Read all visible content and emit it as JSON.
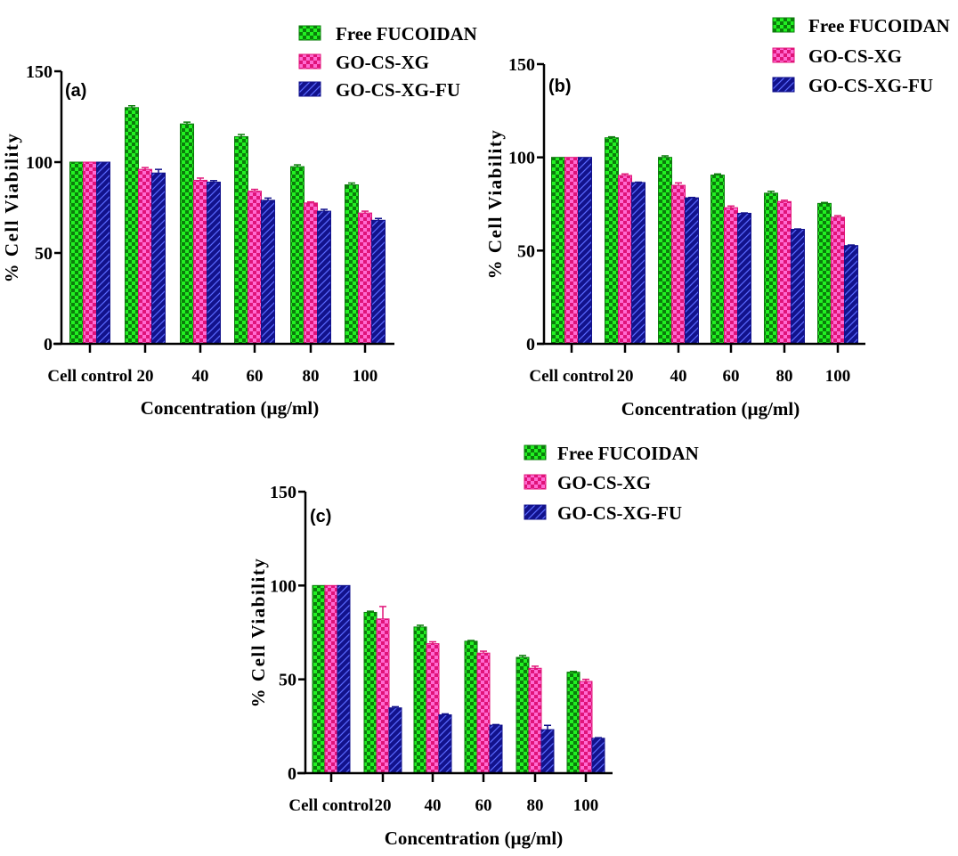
{
  "chart_data": [
    {
      "type": "bar",
      "panel_label": "(a)",
      "categories": [
        "Cell control",
        "20",
        "40",
        "60",
        "80",
        "100"
      ],
      "xlabel": "Concentration (µg/ml)",
      "ylabel": "% Cell Viability",
      "ylim": [
        0,
        150
      ],
      "yticks": [
        0,
        50,
        100,
        150
      ],
      "grid": false,
      "legend_position": "top-right",
      "series": [
        {
          "name": "Free FUCOIDAN",
          "values": [
            100,
            130,
            121,
            114,
            97.5,
            87.5
          ],
          "errors": [
            0,
            1,
            1,
            1.2,
            1,
            1
          ],
          "color": "#0b7d0b",
          "pattern_color": "#22f022",
          "pattern": "checker"
        },
        {
          "name": "GO-CS-XG",
          "values": [
            100,
            96,
            90,
            84,
            77.5,
            72
          ],
          "errors": [
            0,
            1,
            1.2,
            1,
            0.6,
            1
          ],
          "color": "#e01479",
          "pattern_color": "#ff6ad2",
          "pattern": "checker"
        },
        {
          "name": "GO-CS-XG-FU",
          "values": [
            100,
            94,
            89,
            79,
            73,
            68
          ],
          "errors": [
            0,
            2,
            0.8,
            1.2,
            1,
            1
          ],
          "color": "#12128c",
          "pattern_color": "#5a6aff",
          "pattern": "hatch"
        }
      ]
    },
    {
      "type": "bar",
      "panel_label": "(b)",
      "categories": [
        "Cell control",
        "20",
        "40",
        "60",
        "80",
        "100"
      ],
      "xlabel": "Concentration (µg/ml)",
      "ylabel": "% Cell Viability",
      "ylim": [
        0,
        150
      ],
      "yticks": [
        0,
        50,
        100,
        150
      ],
      "grid": false,
      "legend_position": "top-right",
      "series": [
        {
          "name": "Free FUCOIDAN",
          "values": [
            100,
            110.5,
            100,
            90.5,
            80.8,
            75.3
          ],
          "errors": [
            0,
            0.5,
            0.8,
            0.6,
            1,
            0.5
          ],
          "color": "#0b7d0b",
          "pattern_color": "#22f022",
          "pattern": "checker"
        },
        {
          "name": "GO-CS-XG",
          "values": [
            100,
            90.3,
            85,
            73,
            76.3,
            67.9
          ],
          "errors": [
            0,
            0.8,
            1.3,
            0.9,
            0.7,
            0.8
          ],
          "color": "#e01479",
          "pattern_color": "#ff6ad2",
          "pattern": "checker"
        },
        {
          "name": "GO-CS-XG-FU",
          "values": [
            100,
            86.5,
            78.3,
            70,
            61.4,
            52.7
          ],
          "errors": [
            0,
            0.2,
            0.2,
            0.2,
            0.2,
            0.3
          ],
          "color": "#12128c",
          "pattern_color": "#5a6aff",
          "pattern": "hatch"
        }
      ]
    },
    {
      "type": "bar",
      "panel_label": "(c)",
      "categories": [
        "Cell control",
        "20",
        "40",
        "60",
        "80",
        "100"
      ],
      "xlabel": "Concentration (µg/ml)",
      "ylabel": "% Cell Viability",
      "ylim": [
        0,
        150
      ],
      "yticks": [
        0,
        50,
        100,
        150
      ],
      "grid": false,
      "legend_position": "top-right",
      "series": [
        {
          "name": "Free FUCOIDAN",
          "values": [
            100,
            85.7,
            77.9,
            70.3,
            61.7,
            53.8
          ],
          "errors": [
            0,
            0.6,
            0.9,
            0.4,
            1,
            0.4
          ],
          "color": "#0b7d0b",
          "pattern_color": "#22f022",
          "pattern": "checker"
        },
        {
          "name": "GO-CS-XG",
          "values": [
            100,
            82.2,
            69,
            64,
            55.9,
            48.9
          ],
          "errors": [
            0,
            6.6,
            1,
            1,
            1.1,
            1.1
          ],
          "color": "#e01479",
          "pattern_color": "#ff6ad2",
          "pattern": "checker"
        },
        {
          "name": "GO-CS-XG-FU",
          "values": [
            100,
            34.8,
            31.1,
            25.6,
            23.2,
            18.6
          ],
          "errors": [
            0,
            0.6,
            0.5,
            0.3,
            2.3,
            0.3
          ],
          "color": "#12128c",
          "pattern_color": "#5a6aff",
          "pattern": "hatch"
        }
      ]
    }
  ]
}
